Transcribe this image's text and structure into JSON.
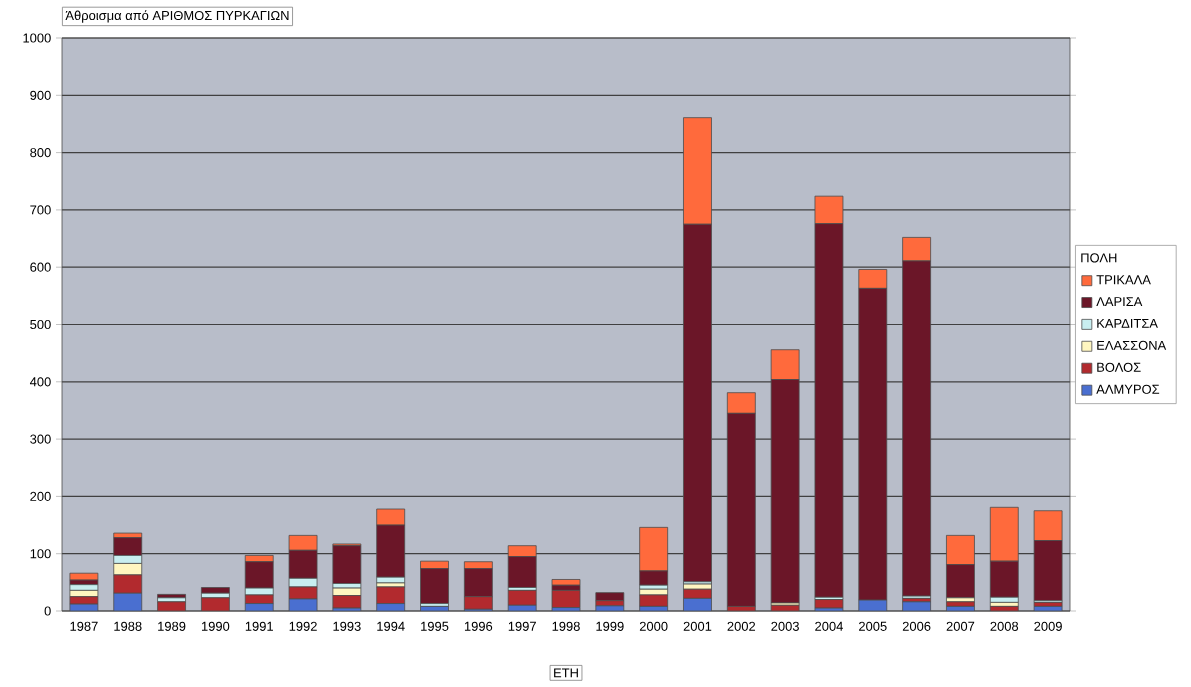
{
  "chart_data": {
    "type": "bar",
    "stacked": true,
    "title": "Άθροισμα από ΑΡΙΘΜΟΣ ΠΥΡΚΑΓΙΩΝ",
    "xlabel": "ΕΤΗ",
    "legend_title": "ΠΟΛΗ",
    "legend": "right",
    "grid": "y",
    "categories": [
      "1987",
      "1988",
      "1989",
      "1990",
      "1991",
      "1992",
      "1993",
      "1994",
      "1995",
      "1996",
      "1997",
      "1998",
      "1999",
      "2000",
      "2001",
      "2002",
      "2003",
      "2004",
      "2005",
      "2006",
      "2007",
      "2008",
      "2009"
    ],
    "ylim": [
      0,
      1000
    ],
    "yticks": [
      0,
      100,
      200,
      300,
      400,
      500,
      600,
      700,
      800,
      900,
      1000
    ],
    "series": [
      {
        "name": "ΑΛΜΥΡΟΣ",
        "color": "#4a6fd0",
        "values": [
          12,
          31,
          0,
          0,
          13,
          21,
          5,
          13,
          8,
          3,
          10,
          6,
          9,
          8,
          22,
          0,
          0,
          5,
          19,
          16,
          8,
          0,
          8
        ]
      },
      {
        "name": "ΒΟΛΟΣ",
        "color": "#b22a2e",
        "values": [
          13,
          32,
          16,
          23,
          15,
          21,
          22,
          29,
          0,
          22,
          26,
          30,
          9,
          20,
          16,
          8,
          10,
          15,
          0,
          6,
          8,
          8,
          7
        ]
      },
      {
        "name": "ΕΛΑΣΣΟΝΑ",
        "color": "#fff6c0",
        "values": [
          11,
          20,
          0,
          0,
          0,
          0,
          13,
          7,
          0,
          0,
          0,
          0,
          0,
          10,
          9,
          0,
          4,
          0,
          0,
          0,
          7,
          7,
          0
        ]
      },
      {
        "name": "ΚΑΡΔΙΤΣΑ",
        "color": "#c8eef0",
        "values": [
          10,
          14,
          7,
          8,
          12,
          15,
          8,
          10,
          5,
          0,
          5,
          0,
          0,
          7,
          4,
          0,
          0,
          4,
          0,
          4,
          0,
          9,
          3
        ]
      },
      {
        "name": "ΛΑΡΙΣΑ",
        "color": "#6b1628",
        "values": [
          8,
          31,
          6,
          10,
          46,
          49,
          66,
          91,
          61,
          49,
          54,
          9,
          14,
          25,
          624,
          337,
          390,
          652,
          544,
          585,
          58,
          63,
          105
        ]
      },
      {
        "name": "ΤΡΙΚΑΛΑ",
        "color": "#ff6a3c",
        "values": [
          12,
          8,
          0,
          0,
          11,
          26,
          3,
          28,
          13,
          12,
          19,
          10,
          0,
          76,
          186,
          36,
          52,
          48,
          33,
          41,
          51,
          94,
          52
        ]
      }
    ]
  }
}
